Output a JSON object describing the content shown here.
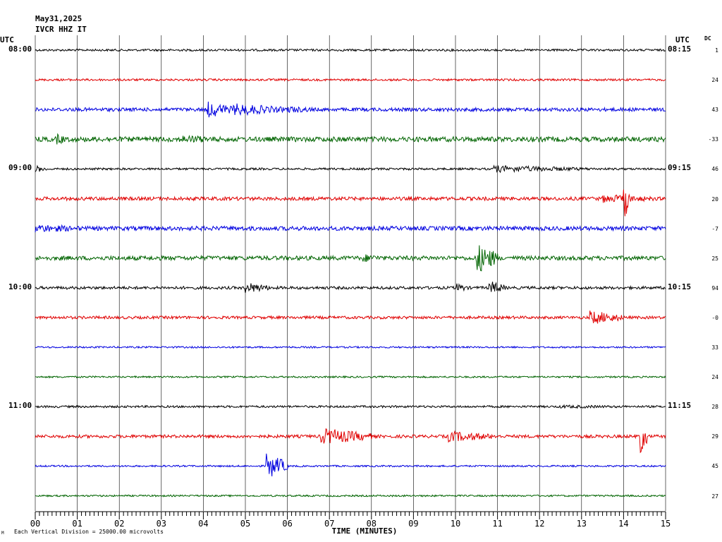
{
  "header": {
    "date": "May31,2025",
    "station": "IVCR HHZ IT",
    "utc_left": "UTC",
    "utc_right": "UTC",
    "dc_label": "DC"
  },
  "footer": {
    "scale_note": "Each Vertical Division = 25000.00 microvolts",
    "corner_mark": "M"
  },
  "colors": {
    "cycle": [
      "#000000",
      "#e00000",
      "#0000e0",
      "#006400"
    ],
    "grid": "#000000"
  },
  "chart_data": {
    "type": "line",
    "title": "May31,2025 IVCR HHZ IT",
    "xlabel": "TIME (MINUTES)",
    "xlim": [
      0,
      15
    ],
    "xticks": [
      "00",
      "01",
      "02",
      "03",
      "04",
      "05",
      "06",
      "07",
      "08",
      "09",
      "10",
      "11",
      "12",
      "13",
      "14",
      "15"
    ],
    "left_time_labels": [
      {
        "row": 0,
        "label": "08:00"
      },
      {
        "row": 4,
        "label": "09:00"
      },
      {
        "row": 8,
        "label": "10:00"
      },
      {
        "row": 12,
        "label": "11:00"
      }
    ],
    "right_time_labels": [
      {
        "row": 0,
        "label": "08:15"
      },
      {
        "row": 4,
        "label": "09:15"
      },
      {
        "row": 8,
        "label": "10:15"
      },
      {
        "row": 12,
        "label": "11:15"
      }
    ],
    "traces": [
      {
        "start": "08:00",
        "dc": "1",
        "base_amp": 1.5,
        "events": []
      },
      {
        "start": "08:15",
        "dc": "24",
        "base_amp": 1.5,
        "events": []
      },
      {
        "start": "08:30",
        "dc": "43",
        "base_amp": 2.5,
        "events": [
          {
            "t": 4.1,
            "dur": 0.6,
            "amp": 12
          },
          {
            "t": 4.7,
            "dur": 1.3,
            "amp": 9
          },
          {
            "t": 6.0,
            "dur": 0.9,
            "amp": 5
          }
        ]
      },
      {
        "start": "08:45",
        "dc": "-33",
        "base_amp": 3.5,
        "events": [
          {
            "t": 0.5,
            "dur": 0.3,
            "amp": 8
          },
          {
            "t": 3.5,
            "dur": 1.2,
            "amp": 6
          }
        ]
      },
      {
        "start": "09:00",
        "dc": "46",
        "base_amp": 1.5,
        "events": [
          {
            "t": 0.0,
            "dur": 0.3,
            "amp": 5
          },
          {
            "t": 10.9,
            "dur": 2.4,
            "amp": 5
          }
        ]
      },
      {
        "start": "09:15",
        "dc": "20",
        "base_amp": 2.5,
        "events": [
          {
            "t": 14.0,
            "dur": 0.15,
            "amp": 30
          },
          {
            "t": 13.5,
            "dur": 1.5,
            "amp": 6
          }
        ]
      },
      {
        "start": "09:30",
        "dc": "-7",
        "base_amp": 3,
        "events": [
          {
            "t": 0.0,
            "dur": 1.5,
            "amp": 6
          }
        ]
      },
      {
        "start": "09:45",
        "dc": "25",
        "base_amp": 3,
        "events": [
          {
            "t": 10.5,
            "dur": 0.5,
            "amp": 22
          },
          {
            "t": 7.8,
            "dur": 0.6,
            "amp": 6
          }
        ]
      },
      {
        "start": "10:00",
        "dc": "94",
        "base_amp": 2,
        "events": [
          {
            "t": 5.0,
            "dur": 0.6,
            "amp": 8
          },
          {
            "t": 10.8,
            "dur": 0.4,
            "amp": 10
          },
          {
            "t": 10.0,
            "dur": 0.3,
            "amp": 7
          }
        ]
      },
      {
        "start": "10:15",
        "dc": "-0",
        "base_amp": 2,
        "events": [
          {
            "t": 13.2,
            "dur": 0.8,
            "amp": 10
          }
        ]
      },
      {
        "start": "10:30",
        "dc": "33",
        "base_amp": 1.2,
        "events": []
      },
      {
        "start": "10:45",
        "dc": "24",
        "base_amp": 1.2,
        "events": []
      },
      {
        "start": "11:00",
        "dc": "28",
        "base_amp": 1.5,
        "events": [
          {
            "t": 12.5,
            "dur": 2.3,
            "amp": 2.5
          }
        ]
      },
      {
        "start": "11:15",
        "dc": "29",
        "base_amp": 2.2,
        "events": [
          {
            "t": 6.8,
            "dur": 1.2,
            "amp": 12
          },
          {
            "t": 9.8,
            "dur": 1.2,
            "amp": 8
          },
          {
            "t": 14.4,
            "dur": 0.15,
            "amp": 28
          }
        ]
      },
      {
        "start": "11:30",
        "dc": "45",
        "base_amp": 1.2,
        "events": [
          {
            "t": 5.5,
            "dur": 0.5,
            "amp": 18
          }
        ]
      },
      {
        "start": "11:45",
        "dc": "27",
        "base_amp": 1.2,
        "events": []
      }
    ]
  }
}
